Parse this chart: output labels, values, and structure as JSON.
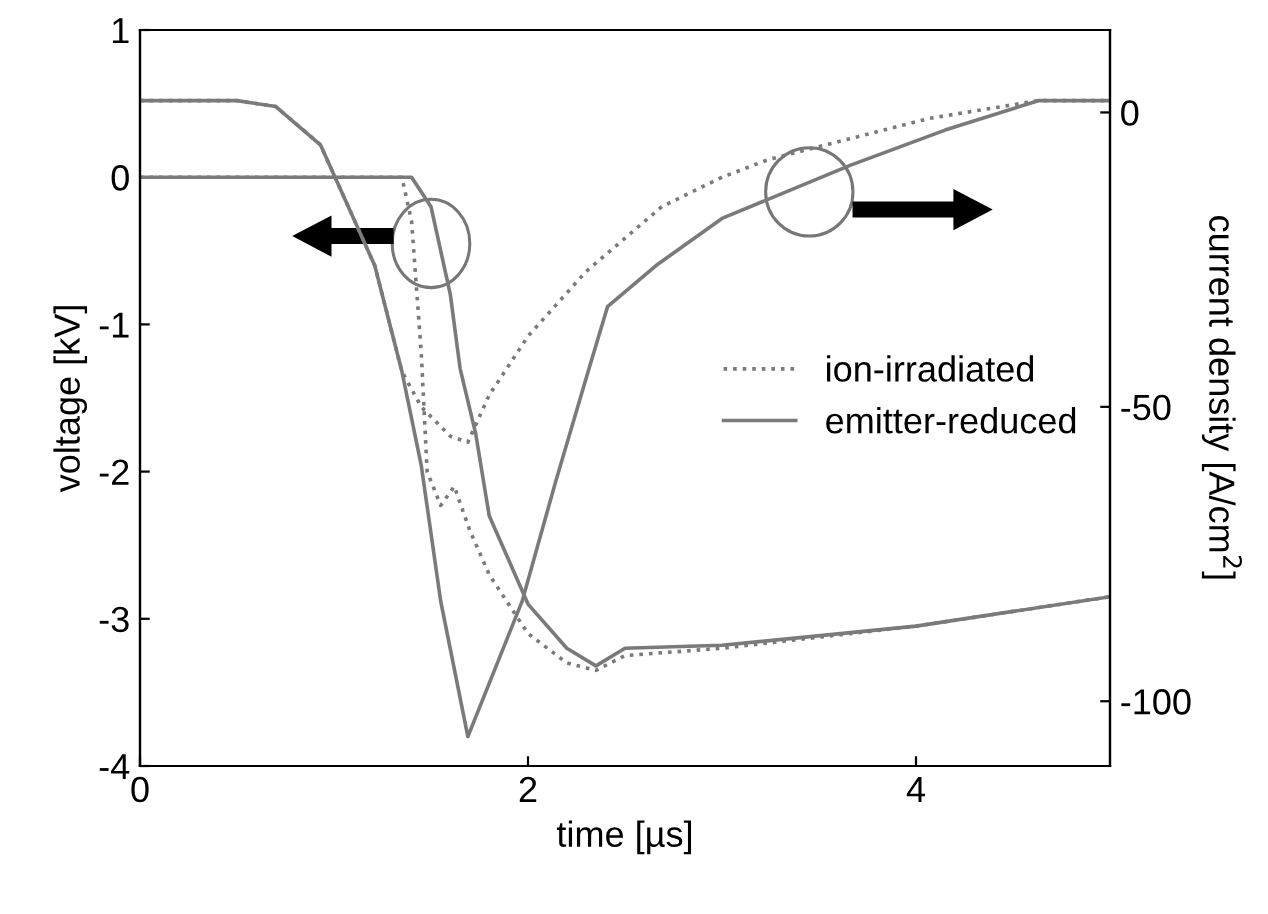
{
  "chart_data": {
    "type": "line",
    "xlabel": "time [µs]",
    "ylabel": "voltage [kV]",
    "y2label": "current density [A/cm$^{2}$]",
    "xlim": [
      0,
      5
    ],
    "xticks": [
      0,
      2,
      4
    ],
    "ylim": [
      -4,
      1
    ],
    "yticks": [
      -4,
      -3,
      -2,
      -1,
      0,
      1
    ],
    "y2lim": [
      -111,
      14
    ],
    "y2ticks": [
      0,
      -50,
      -100
    ],
    "grid": false,
    "legend": "center right",
    "marker": "none",
    "series": [
      {
        "name": "ion-irradiated",
        "color": "#7a7a7a",
        "line_style": "dotted",
        "x": [
          0,
          0.5,
          1.0,
          1.35,
          1.4,
          1.45,
          1.48,
          1.55,
          1.62,
          1.7,
          1.8,
          2.0,
          2.2,
          2.35,
          2.5,
          3,
          4,
          5
        ],
        "values": [
          0,
          0,
          0,
          0,
          -0.3,
          -1.2,
          -2.0,
          -2.23,
          -2.1,
          -2.4,
          -2.7,
          -3.1,
          -3.3,
          -3.35,
          -3.25,
          -3.2,
          -3.05,
          -2.85
        ]
      },
      {
        "name": "emitter-reduced",
        "color": "#7a7a7a",
        "line_style": "solid",
        "x": [
          0,
          0.5,
          1.0,
          1.4,
          1.5,
          1.6,
          1.65,
          1.73,
          1.8,
          2.0,
          2.2,
          2.35,
          2.5,
          3,
          4,
          5
        ],
        "values": [
          0,
          0,
          0,
          0,
          -0.2,
          -0.8,
          -1.3,
          -1.74,
          -2.3,
          -2.9,
          -3.2,
          -3.32,
          -3.2,
          -3.18,
          -3.05,
          -2.85
        ]
      },
      {
        "axis": "y2",
        "color": "#7a7a7a",
        "line_style": "dotted",
        "x": [
          0,
          0.5,
          0.7,
          0.93,
          1.21,
          1.35,
          1.45,
          1.6,
          1.69,
          1.8,
          2.0,
          2.3,
          2.69,
          3.0,
          3.24,
          4.07,
          4.63,
          5
        ],
        "values": [
          2,
          2,
          1,
          -5.5,
          -26,
          -44,
          -50,
          -55,
          -56,
          -48,
          -38,
          -27,
          -16,
          -11,
          -8,
          -1,
          2,
          2
        ]
      },
      {
        "axis": "y2",
        "color": "#7a7a7a",
        "line_style": "solid",
        "x": [
          0,
          0.5,
          0.7,
          0.93,
          1.21,
          1.35,
          1.45,
          1.55,
          1.69,
          1.97,
          2.14,
          2.31,
          2.41,
          2.66,
          3.0,
          3.66,
          4.15,
          4.63,
          5
        ],
        "values": [
          2,
          2,
          1,
          -5.5,
          -26,
          -44,
          -60,
          -83,
          -106,
          -83,
          -63,
          -44,
          -33,
          -26,
          -18,
          -9,
          -3,
          2,
          2
        ]
      }
    ]
  }
}
